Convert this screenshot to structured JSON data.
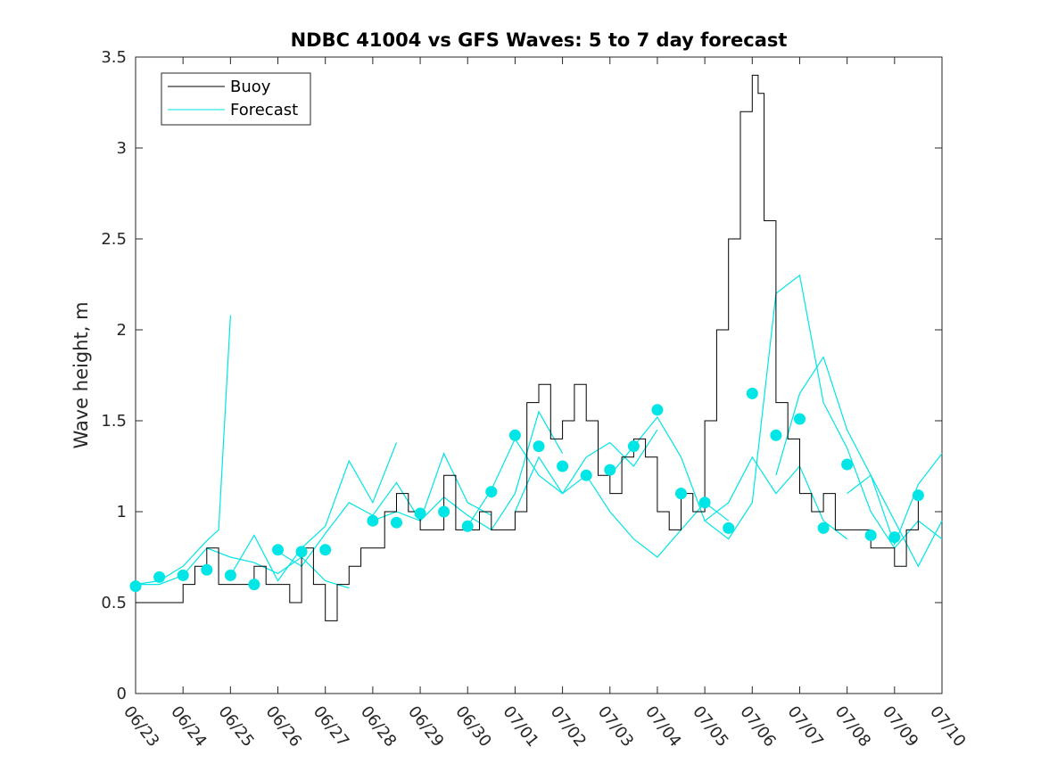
{
  "chart_data": {
    "type": "line",
    "title": "NDBC 41004 vs GFS Waves: 5 to 7 day forecast",
    "xlabel": "",
    "ylabel": "Wave height, m",
    "xlim": [
      "06/23",
      "07/10"
    ],
    "ylim": [
      0,
      3.5
    ],
    "x_tick_labels": [
      "06/23",
      "06/24",
      "06/25",
      "06/26",
      "06/27",
      "06/28",
      "06/29",
      "06/30",
      "07/01",
      "07/02",
      "07/03",
      "07/04",
      "07/05",
      "07/06",
      "07/07",
      "07/08",
      "07/09",
      "07/10"
    ],
    "y_ticks": [
      0,
      0.5,
      1,
      1.5,
      2,
      2.5,
      3,
      3.5
    ],
    "y_tick_labels": [
      "0",
      "0.5",
      "1",
      "1.5",
      "2",
      "2.5",
      "3",
      "3.5"
    ],
    "grid": false,
    "legend_position": "top-left",
    "legend": [
      "Buoy",
      "Forecast"
    ],
    "colors": {
      "buoy": "#000000",
      "forecast": "#00e5e5",
      "axis": "#262626"
    },
    "buoy": {
      "name": "Buoy",
      "x": [
        "06/23 00:00",
        "06/23 12:00",
        "06/23 18:00",
        "06/24 00:00",
        "06/24 06:00",
        "06/24 12:00",
        "06/24 18:00",
        "06/25 00:00",
        "06/25 06:00",
        "06/25 12:00",
        "06/25 18:00",
        "06/26 00:00",
        "06/26 06:00",
        "06/26 12:00",
        "06/26 18:00",
        "06/27 00:00",
        "06/27 06:00",
        "06/27 12:00",
        "06/27 18:00",
        "06/28 00:00",
        "06/28 06:00",
        "06/28 12:00",
        "06/28 18:00",
        "06/29 00:00",
        "06/29 06:00",
        "06/29 12:00",
        "06/29 18:00",
        "06/30 00:00",
        "06/30 06:00",
        "06/30 12:00",
        "06/30 18:00",
        "07/01 00:00",
        "07/01 06:00",
        "07/01 12:00",
        "07/01 18:00",
        "07/02 00:00",
        "07/02 06:00",
        "07/02 12:00",
        "07/02 18:00",
        "07/03 00:00",
        "07/03 06:00",
        "07/03 12:00",
        "07/03 18:00",
        "07/04 00:00",
        "07/04 06:00",
        "07/04 12:00",
        "07/04 18:00",
        "07/05 00:00",
        "07/05 06:00",
        "07/05 12:00",
        "07/05 18:00",
        "07/06 00:00",
        "07/06 03:00",
        "07/06 06:00",
        "07/06 12:00",
        "07/06 18:00",
        "07/07 00:00",
        "07/07 06:00",
        "07/07 12:00",
        "07/07 18:00",
        "07/08 00:00",
        "07/08 06:00",
        "07/08 12:00",
        "07/08 18:00",
        "07/09 00:00",
        "07/09 06:00",
        "07/09 12:00"
      ],
      "y": [
        0.5,
        0.5,
        0.5,
        0.6,
        0.7,
        0.8,
        0.6,
        0.6,
        0.6,
        0.7,
        0.6,
        0.6,
        0.5,
        0.8,
        0.6,
        0.4,
        0.6,
        0.7,
        0.8,
        0.8,
        1.0,
        1.1,
        1.0,
        0.9,
        0.9,
        1.2,
        0.9,
        0.9,
        1.0,
        0.9,
        0.9,
        1.0,
        1.6,
        1.7,
        1.4,
        1.5,
        1.7,
        1.5,
        1.2,
        1.1,
        1.3,
        1.4,
        1.3,
        1.0,
        0.9,
        1.1,
        1.0,
        1.5,
        2.0,
        2.5,
        3.2,
        3.4,
        3.3,
        2.6,
        1.6,
        1.4,
        1.1,
        1.0,
        1.1,
        0.9,
        0.9,
        0.9,
        0.8,
        0.8,
        0.7,
        0.9,
        1.1
      ]
    },
    "forecast_runs": [
      {
        "name": "Forecast",
        "x": [
          "06/23 00:00",
          "06/23 12:00",
          "06/24 00:00",
          "06/24 12:00",
          "06/25 00:00",
          "06/25 12:00",
          "06/26 00:00",
          "06/26 12:00",
          "06/27 00:00",
          "06/27 12:00"
        ],
        "y": [
          0.6,
          0.6,
          0.65,
          0.8,
          0.75,
          0.72,
          0.66,
          0.75,
          0.62,
          0.58
        ]
      },
      {
        "name": "Forecast",
        "x": [
          "06/23 00:00",
          "06/23 12:00",
          "06/24 00:00",
          "06/24 12:00",
          "06/24 18:00",
          "06/25 00:00"
        ],
        "y": [
          0.6,
          0.62,
          0.7,
          0.84,
          0.9,
          2.08
        ]
      },
      {
        "name": "Forecast",
        "x": [
          "06/25 00:00",
          "06/25 12:00",
          "06/26 00:00",
          "06/26 12:00",
          "06/27 00:00",
          "06/27 12:00",
          "06/28 00:00",
          "06/28 12:00"
        ],
        "y": [
          0.65,
          0.87,
          0.62,
          0.8,
          0.92,
          1.28,
          1.05,
          1.38
        ]
      },
      {
        "name": "Forecast",
        "x": [
          "06/26 00:00",
          "06/26 12:00",
          "06/27 00:00",
          "06/27 12:00",
          "06/28 00:00",
          "06/28 12:00",
          "06/29 00:00",
          "06/29 12:00",
          "06/30 00:00",
          "06/30 12:00"
        ],
        "y": [
          0.78,
          0.7,
          0.88,
          1.05,
          0.98,
          1.16,
          0.95,
          1.32,
          1.05,
          0.98
        ]
      },
      {
        "name": "Forecast",
        "x": [
          "06/28 00:00",
          "06/28 12:00",
          "06/29 00:00",
          "06/29 12:00",
          "06/30 00:00",
          "06/30 12:00",
          "07/01 00:00",
          "07/01 12:00",
          "07/02 00:00"
        ],
        "y": [
          0.95,
          1.0,
          0.95,
          1.08,
          0.98,
          0.9,
          1.1,
          1.55,
          1.32
        ]
      },
      {
        "name": "Forecast",
        "x": [
          "06/30 00:00",
          "06/30 12:00",
          "07/01 00:00",
          "07/01 12:00",
          "07/02 00:00",
          "07/02 12:00",
          "07/03 00:00",
          "07/03 12:00",
          "07/04 00:00"
        ],
        "y": [
          0.92,
          1.12,
          1.4,
          1.2,
          1.1,
          1.3,
          1.38,
          1.25,
          1.45
        ]
      },
      {
        "name": "Forecast",
        "x": [
          "07/01 00:00",
          "07/01 12:00",
          "07/02 00:00",
          "07/02 12:00",
          "07/03 00:00",
          "07/03 12:00",
          "07/04 00:00",
          "07/04 12:00",
          "07/05 00:00",
          "07/05 12:00"
        ],
        "y": [
          1.0,
          1.3,
          1.1,
          1.2,
          1.0,
          0.85,
          0.75,
          0.9,
          1.05,
          0.95
        ]
      },
      {
        "name": "Forecast",
        "x": [
          "07/03 00:00",
          "07/03 12:00",
          "07/04 00:00",
          "07/04 12:00",
          "07/05 00:00",
          "07/05 12:00",
          "07/06 00:00",
          "07/06 12:00",
          "07/07 00:00",
          "07/07 12:00",
          "07/08 00:00"
        ],
        "y": [
          1.2,
          1.36,
          1.52,
          1.3,
          0.95,
          1.05,
          1.3,
          1.1,
          1.25,
          0.95,
          0.85
        ]
      },
      {
        "name": "Forecast",
        "x": [
          "07/05 00:00",
          "07/05 12:00",
          "07/06 00:00",
          "07/06 12:00",
          "07/07 00:00",
          "07/07 12:00",
          "07/08 00:00",
          "07/08 12:00",
          "07/09 00:00",
          "07/09 12:00",
          "07/10 00:00"
        ],
        "y": [
          0.95,
          0.85,
          1.05,
          2.2,
          2.3,
          1.6,
          1.35,
          1.0,
          0.8,
          0.95,
          0.85
        ]
      },
      {
        "name": "Forecast",
        "x": [
          "07/06 12:00",
          "07/07 00:00",
          "07/07 12:00",
          "07/08 00:00",
          "07/08 12:00",
          "07/09 00:00",
          "07/09 12:00",
          "07/10 00:00"
        ],
        "y": [
          1.2,
          1.65,
          1.85,
          1.45,
          1.2,
          0.95,
          0.7,
          0.95
        ]
      },
      {
        "name": "Forecast",
        "x": [
          "07/08 00:00",
          "07/08 12:00",
          "07/09 00:00",
          "07/09 12:00",
          "07/10 00:00"
        ],
        "y": [
          1.1,
          1.2,
          0.82,
          1.15,
          1.32
        ]
      }
    ],
    "forecast_markers": {
      "x": [
        "06/23 00:00",
        "06/23 12:00",
        "06/24 00:00",
        "06/24 12:00",
        "06/25 00:00",
        "06/25 12:00",
        "06/26 00:00",
        "06/26 12:00",
        "06/27 00:00",
        "06/28 00:00",
        "06/28 12:00",
        "06/29 00:00",
        "06/29 12:00",
        "06/30 00:00",
        "06/30 12:00",
        "07/01 00:00",
        "07/01 12:00",
        "07/02 00:00",
        "07/02 12:00",
        "07/03 00:00",
        "07/03 12:00",
        "07/04 00:00",
        "07/04 12:00",
        "07/05 00:00",
        "07/05 12:00",
        "07/06 00:00",
        "07/06 12:00",
        "07/07 00:00",
        "07/07 12:00",
        "07/08 00:00",
        "07/08 12:00",
        "07/09 00:00",
        "07/09 12:00"
      ],
      "y": [
        0.59,
        0.64,
        0.65,
        0.68,
        0.65,
        0.6,
        0.79,
        0.78,
        0.79,
        0.95,
        0.94,
        0.99,
        1.0,
        0.92,
        1.11,
        1.42,
        1.36,
        1.25,
        1.2,
        1.23,
        1.36,
        1.56,
        1.1,
        1.05,
        0.91,
        1.65,
        1.42,
        1.51,
        0.91,
        1.26,
        0.87,
        0.86,
        1.09
      ]
    }
  }
}
